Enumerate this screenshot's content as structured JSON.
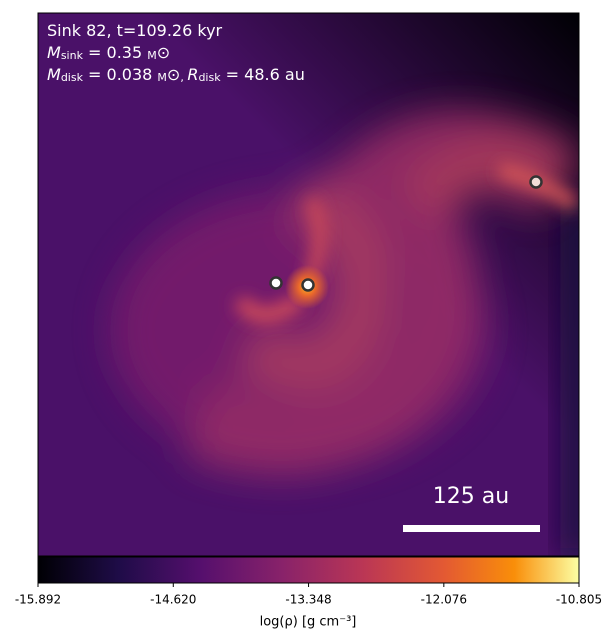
{
  "chart_data": {
    "type": "heatmap",
    "annotations": [
      [
        "Sink 82, t=109.26 kyr"
      ],
      [
        "M",
        "sink",
        " = 0.35 ",
        "M",
        "⊙"
      ],
      [
        "M",
        "disk",
        " = 0.038 ",
        "M",
        "⊙",
        ", ",
        "R",
        "disk",
        " = 48.6 au"
      ]
    ],
    "scale_bar_label": "125 au",
    "colorbar": {
      "label": "log(ρ) [g cm⁻³]",
      "colormap": "inferno",
      "xlim": [
        -15.892,
        -10.805
      ],
      "xticks": [
        -15.892,
        {
          "value": -14.62,
          "label": "-14.620"
        },
        -13.348,
        -12.076,
        -10.805
      ]
    }
  }
}
